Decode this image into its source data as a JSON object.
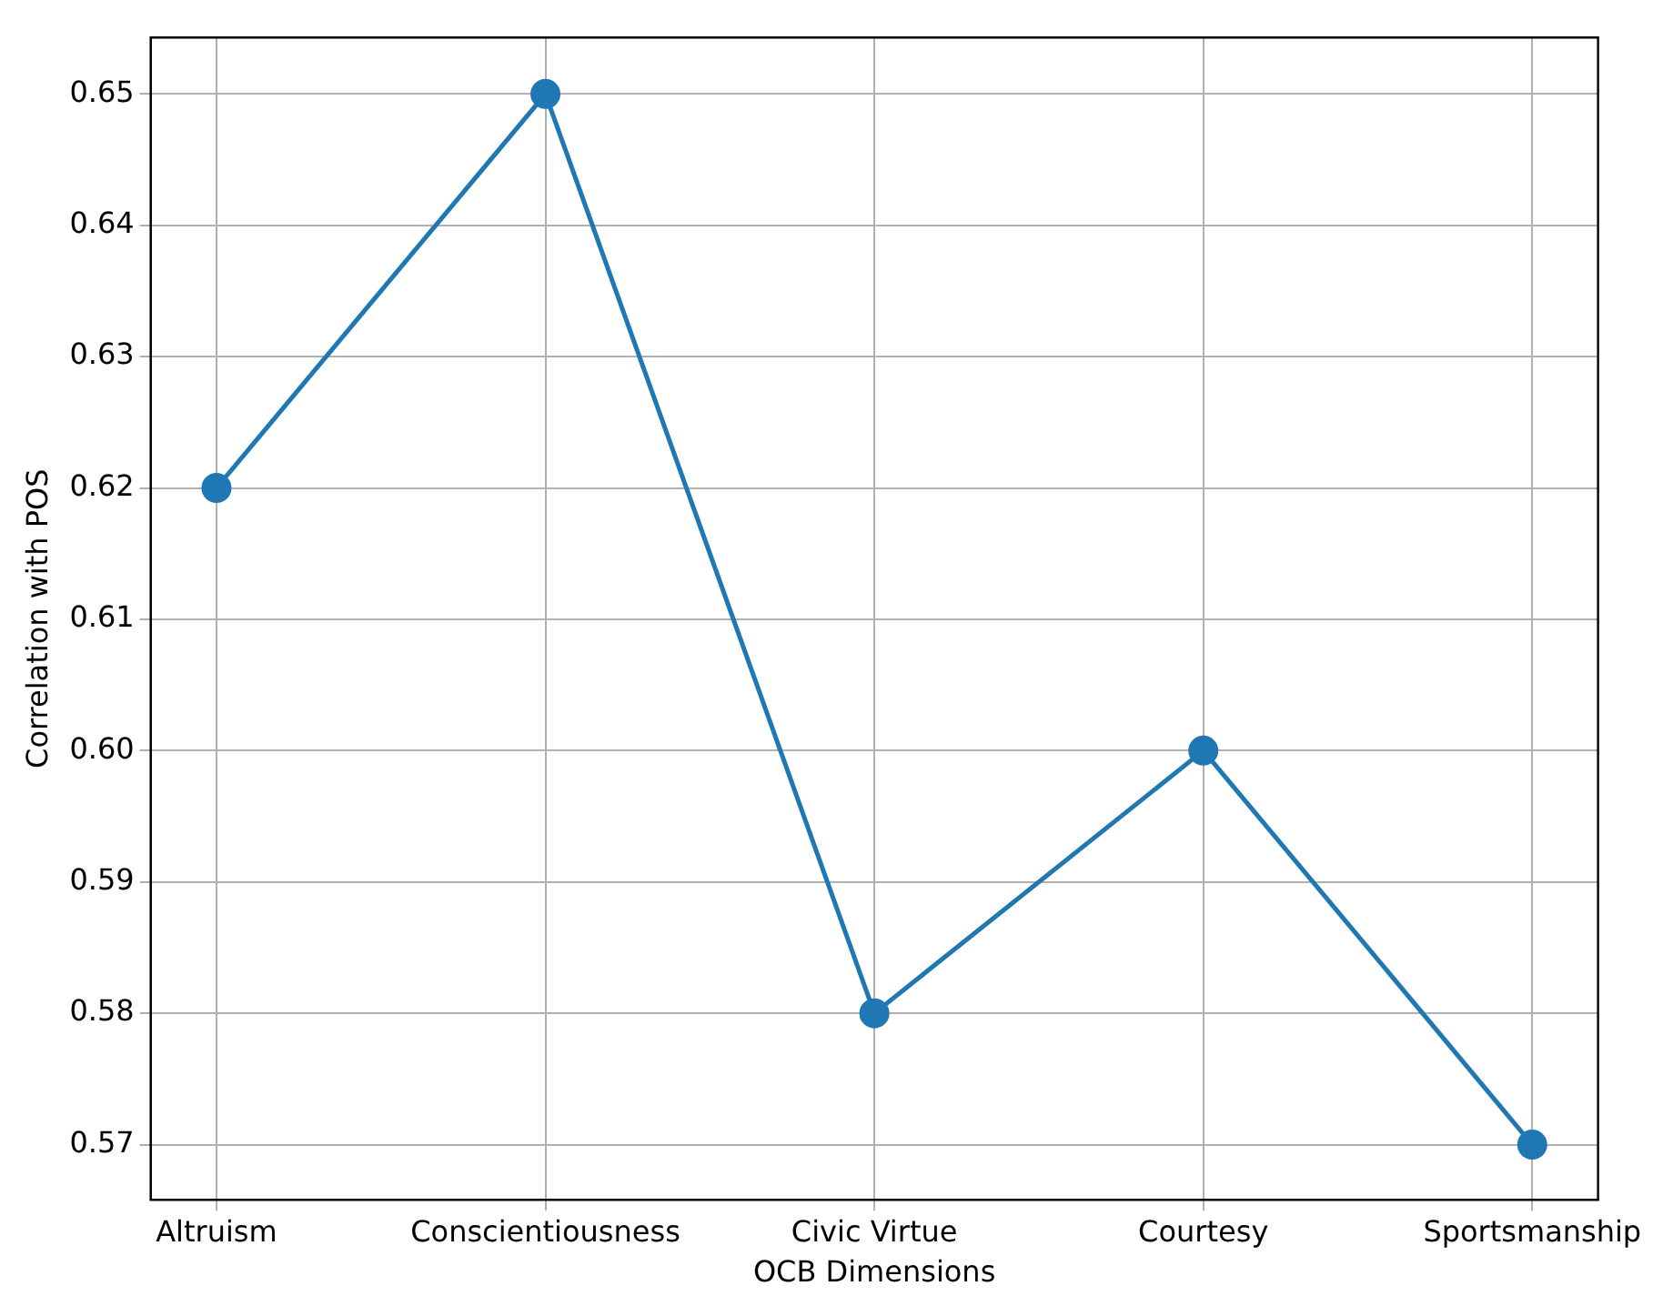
{
  "chart_data": {
    "type": "line",
    "xlabel": "OCB Dimensions",
    "ylabel": "Correlation with POS",
    "categories": [
      "Altruism",
      "Conscientiousness",
      "Civic Virtue",
      "Courtesy",
      "Sportsmanship"
    ],
    "series": [
      {
        "color": "#1f77b4",
        "values": [
          0.62,
          0.65,
          0.58,
          0.6,
          0.57
        ]
      }
    ],
    "ylim": [
      0.5658,
      0.6543
    ],
    "yticks": [
      {
        "value": 0.57,
        "label": "0.57"
      },
      {
        "value": 0.58,
        "label": "0.58"
      },
      {
        "value": 0.59,
        "label": "0.59"
      },
      {
        "value": 0.6,
        "label": "0.60"
      },
      {
        "value": 0.61,
        "label": "0.61"
      },
      {
        "value": 0.62,
        "label": "0.62"
      },
      {
        "value": 0.63,
        "label": "0.63"
      },
      {
        "value": 0.64,
        "label": "0.64"
      },
      {
        "value": 0.65,
        "label": "0.65"
      }
    ],
    "grid": true,
    "marker": "circle",
    "line_style": "solid",
    "legend": false
  }
}
